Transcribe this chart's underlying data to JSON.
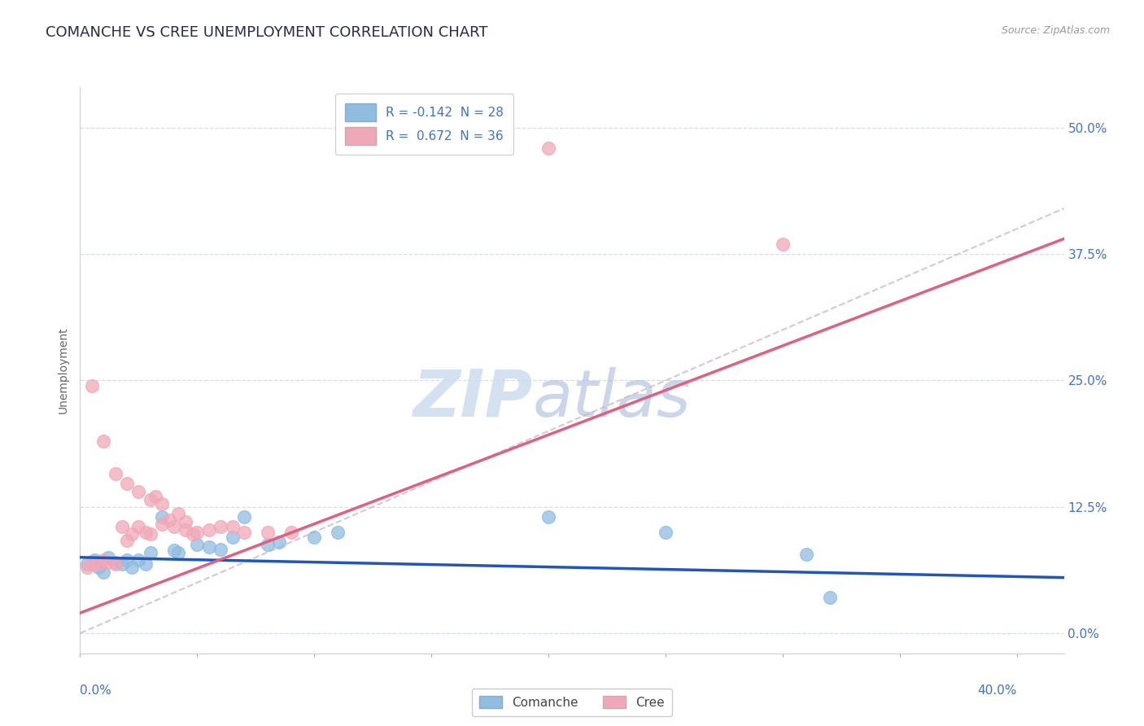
{
  "title": "COMANCHE VS CREE UNEMPLOYMENT CORRELATION CHART",
  "source": "Source: ZipAtlas.com",
  "ylabel": "Unemployment",
  "ytick_values": [
    0.0,
    0.125,
    0.25,
    0.375,
    0.5
  ],
  "xlim": [
    0.0,
    0.42
  ],
  "ylim": [
    -0.02,
    0.54
  ],
  "watermark_zip": "ZIP",
  "watermark_atlas": "atlas",
  "comanche_pts": [
    [
      0.003,
      0.068
    ],
    [
      0.006,
      0.072
    ],
    [
      0.008,
      0.065
    ],
    [
      0.01,
      0.06
    ],
    [
      0.012,
      0.075
    ],
    [
      0.015,
      0.07
    ],
    [
      0.018,
      0.068
    ],
    [
      0.02,
      0.072
    ],
    [
      0.022,
      0.065
    ],
    [
      0.025,
      0.072
    ],
    [
      0.028,
      0.068
    ],
    [
      0.03,
      0.08
    ],
    [
      0.035,
      0.115
    ],
    [
      0.04,
      0.082
    ],
    [
      0.042,
      0.08
    ],
    [
      0.05,
      0.088
    ],
    [
      0.055,
      0.085
    ],
    [
      0.06,
      0.083
    ],
    [
      0.065,
      0.095
    ],
    [
      0.07,
      0.115
    ],
    [
      0.08,
      0.088
    ],
    [
      0.085,
      0.09
    ],
    [
      0.1,
      0.095
    ],
    [
      0.11,
      0.1
    ],
    [
      0.2,
      0.115
    ],
    [
      0.25,
      0.1
    ],
    [
      0.31,
      0.078
    ],
    [
      0.32,
      0.035
    ]
  ],
  "cree_pts": [
    [
      0.003,
      0.065
    ],
    [
      0.005,
      0.068
    ],
    [
      0.008,
      0.068
    ],
    [
      0.01,
      0.072
    ],
    [
      0.012,
      0.07
    ],
    [
      0.015,
      0.068
    ],
    [
      0.018,
      0.105
    ],
    [
      0.02,
      0.092
    ],
    [
      0.022,
      0.098
    ],
    [
      0.025,
      0.105
    ],
    [
      0.028,
      0.1
    ],
    [
      0.03,
      0.098
    ],
    [
      0.032,
      0.135
    ],
    [
      0.035,
      0.108
    ],
    [
      0.038,
      0.112
    ],
    [
      0.04,
      0.105
    ],
    [
      0.042,
      0.118
    ],
    [
      0.045,
      0.11
    ],
    [
      0.048,
      0.098
    ],
    [
      0.05,
      0.1
    ],
    [
      0.055,
      0.102
    ],
    [
      0.06,
      0.105
    ],
    [
      0.065,
      0.105
    ],
    [
      0.07,
      0.1
    ],
    [
      0.08,
      0.1
    ],
    [
      0.09,
      0.1
    ],
    [
      0.005,
      0.245
    ],
    [
      0.01,
      0.19
    ],
    [
      0.015,
      0.158
    ],
    [
      0.02,
      0.148
    ],
    [
      0.025,
      0.14
    ],
    [
      0.03,
      0.132
    ],
    [
      0.035,
      0.128
    ],
    [
      0.2,
      0.48
    ],
    [
      0.045,
      0.102
    ],
    [
      0.3,
      0.385
    ]
  ],
  "comanche_color": "#90bce0",
  "cree_color": "#f0a8b8",
  "comanche_line_color": "#2255bb",
  "cree_line_color": "#e06080",
  "diagonal_color": "#d0b8c8",
  "background_color": "#ffffff",
  "grid_color": "#d5dde8",
  "legend_color": "#4472C4",
  "legend_line1": "R = -0.142  N = 28",
  "legend_line2": "R =  0.672  N = 36",
  "com_line_y0": 0.075,
  "com_line_y1": 0.055,
  "cree_line_y0": 0.02,
  "cree_line_y1": 0.39
}
